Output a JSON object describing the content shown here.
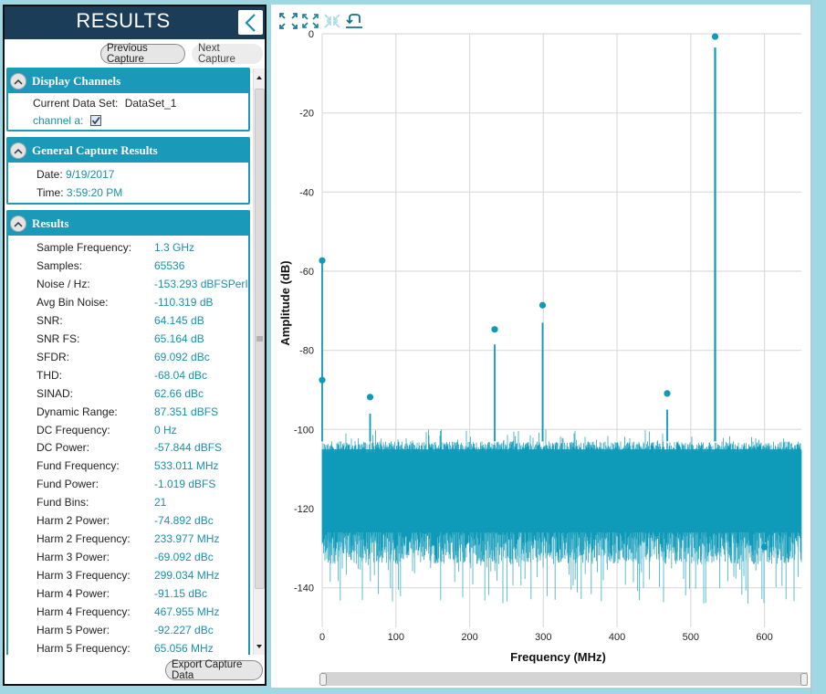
{
  "panel": {
    "title": "RESULTS",
    "collapse_icon": "chevron-left-icon",
    "previous_button": "Previous Capture",
    "next_button": "Next Capture",
    "export_button": "Export Capture Data"
  },
  "display_channels": {
    "title": "Display Channels",
    "current_data_set_label": "Current Data Set:",
    "current_data_set_value": "DataSet_1",
    "channel_label": "channel a:",
    "channel_checked": true
  },
  "general_capture": {
    "title": "General Capture Results",
    "date_label": "Date:",
    "date_value": "9/19/2017",
    "time_label": "Time:",
    "time_value": "3:59:20 PM"
  },
  "results": {
    "title": "Results",
    "items": [
      {
        "label": "Sample Frequency:",
        "value": "1.3 GHz"
      },
      {
        "label": "Samples:",
        "value": "65536"
      },
      {
        "label": "Noise / Hz:",
        "value": "-153.293 dBFSPerI"
      },
      {
        "label": "Avg Bin Noise:",
        "value": "-110.319 dB"
      },
      {
        "label": "SNR:",
        "value": "64.145 dB"
      },
      {
        "label": "SNR FS:",
        "value": "65.164 dB"
      },
      {
        "label": "SFDR:",
        "value": "69.092 dBc"
      },
      {
        "label": "THD:",
        "value": "-68.04 dBc"
      },
      {
        "label": "SINAD:",
        "value": "62.66 dBc"
      },
      {
        "label": "Dynamic Range:",
        "value": "87.351 dBFS"
      },
      {
        "label": "DC Frequency:",
        "value": "0 Hz"
      },
      {
        "label": "DC Power:",
        "value": "-57.844 dBFS"
      },
      {
        "label": "Fund Frequency:",
        "value": "533.011 MHz"
      },
      {
        "label": "Fund Power:",
        "value": "-1.019 dBFS"
      },
      {
        "label": "Fund Bins:",
        "value": "21"
      },
      {
        "label": "Harm 2 Power:",
        "value": "-74.892 dBc"
      },
      {
        "label": "Harm 2 Frequency:",
        "value": "233.977 MHz"
      },
      {
        "label": "Harm 3 Power:",
        "value": "-69.092 dBc"
      },
      {
        "label": "Harm 3 Frequency:",
        "value": "299.034 MHz"
      },
      {
        "label": "Harm 4 Power:",
        "value": "-91.15 dBc"
      },
      {
        "label": "Harm 4 Frequency:",
        "value": "467.955 MHz"
      },
      {
        "label": "Harm 5 Power:",
        "value": "-92.227 dBc"
      },
      {
        "label": "Harm 5 Frequency:",
        "value": "65.056 MHz"
      }
    ]
  },
  "toolbar": {
    "icons": [
      "zoom-extents-icon",
      "zoom-in-icon",
      "zoom-out-icon",
      "reset-zoom-icon"
    ]
  },
  "colors": {
    "accent": "#1a9ab8",
    "header": "#1c3d57",
    "trace": "#0e9ab8",
    "value_text": "#1a8fad"
  },
  "chart_data": {
    "type": "line",
    "title": "",
    "xlabel": "Frequency (MHz)",
    "ylabel": "Amplitude (dB)",
    "xlim": [
      0,
      650
    ],
    "ylim": [
      -150,
      0
    ],
    "x_ticks": [
      0,
      100,
      200,
      300,
      400,
      500,
      600
    ],
    "y_ticks": [
      0,
      -20,
      -40,
      -60,
      -80,
      -100,
      -120,
      -140
    ],
    "grid": true,
    "noise_floor": {
      "top_approx": -103,
      "mean_approx": -112,
      "bottom_approx": -130
    },
    "spurs": [
      {
        "name": "DC",
        "x": 0,
        "y": -57.8
      },
      {
        "name": "Harm 5",
        "x": 65,
        "y": -96
      },
      {
        "name": "Harm 2",
        "x": 234,
        "y": -78.5
      },
      {
        "name": "Harm 3",
        "x": 299,
        "y": -73
      },
      {
        "name": "Harm 4",
        "x": 468,
        "y": -95
      },
      {
        "name": "Fundamental",
        "x": 533,
        "y": -3.5
      }
    ],
    "markers": [
      {
        "name": "DC",
        "x": 0,
        "y": -57.3
      },
      {
        "name": "marker-0b",
        "x": 0,
        "y": -87.5
      },
      {
        "name": "Harm 5",
        "x": 65,
        "y": -91.8
      },
      {
        "name": "Harm 2",
        "x": 234,
        "y": -74.7
      },
      {
        "name": "Harm 3",
        "x": 299,
        "y": -68.6
      },
      {
        "name": "Harm 4",
        "x": 468,
        "y": -90.9
      },
      {
        "name": "Fundamental",
        "x": 533,
        "y": -0.7
      },
      {
        "name": "marker-600",
        "x": 600,
        "y": -129.7
      }
    ]
  }
}
